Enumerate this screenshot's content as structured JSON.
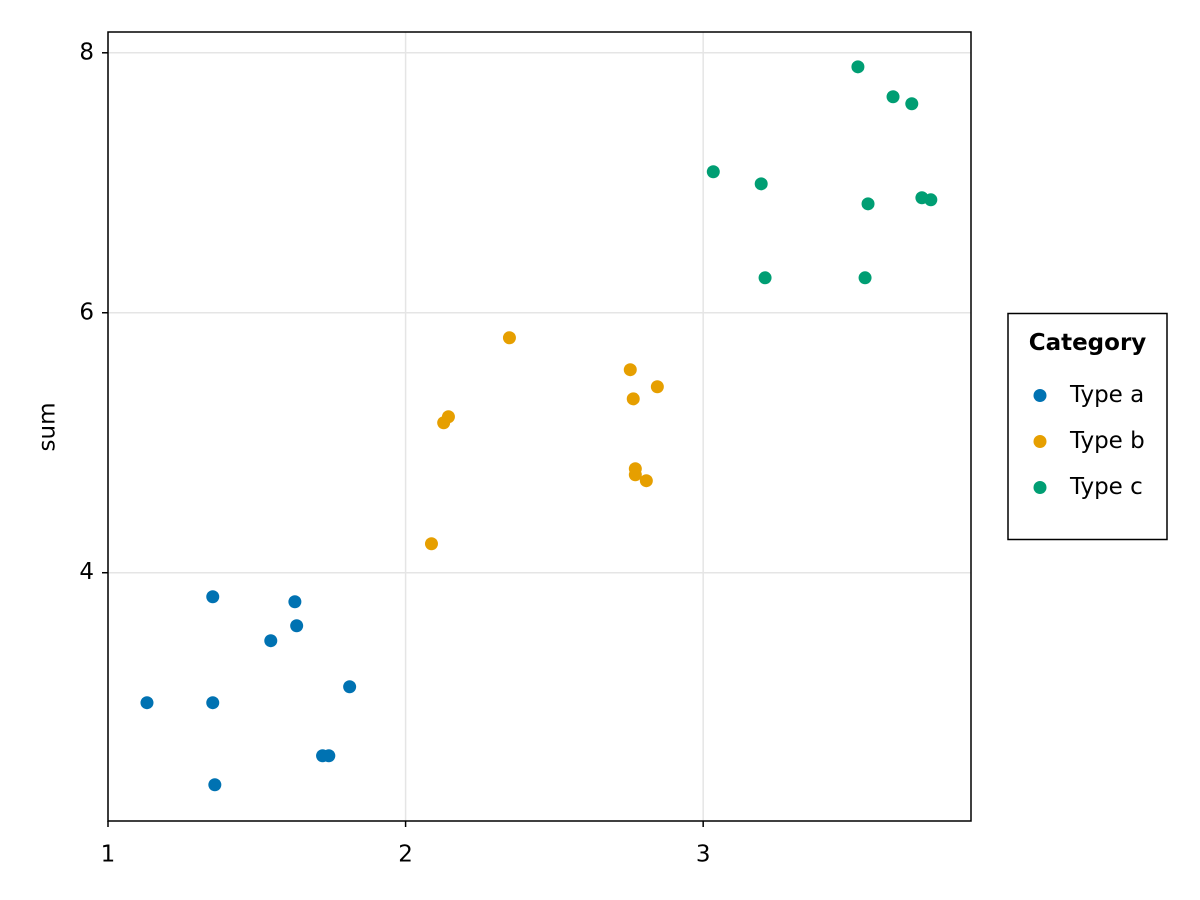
{
  "chart_data": {
    "type": "scatter",
    "y_label": "sum",
    "xlim": [
      1.0,
      3.9
    ],
    "ylim": [
      2.09,
      8.16
    ],
    "xticks": [
      1,
      2,
      3
    ],
    "yticks": [
      4,
      6,
      8
    ],
    "grid": true,
    "legend_title": "Category",
    "legend_position": "right",
    "series": [
      {
        "name": "Type a",
        "color": "#0072b2",
        "x": [
          1.131,
          1.352,
          1.352,
          1.359,
          1.547,
          1.628,
          1.634,
          1.721,
          1.742,
          1.812
        ],
        "values": [
          3.0,
          3.815,
          3.0,
          2.369,
          3.477,
          3.777,
          3.592,
          2.592,
          2.592,
          3.123
        ]
      },
      {
        "name": "Type b",
        "color": "#e69f00",
        "x": [
          2.087,
          2.128,
          2.144,
          2.349,
          2.755,
          2.765,
          2.772,
          2.772,
          2.809,
          2.846
        ],
        "values": [
          4.223,
          5.154,
          5.2,
          5.808,
          5.562,
          5.338,
          4.8,
          4.754,
          4.708,
          5.431
        ]
      },
      {
        "name": "Type c",
        "color": "#009e73",
        "x": [
          3.034,
          3.195,
          3.208,
          3.52,
          3.544,
          3.554,
          3.638,
          3.701,
          3.735,
          3.765
        ],
        "values": [
          7.085,
          6.992,
          6.269,
          7.892,
          6.269,
          6.838,
          7.662,
          7.608,
          6.885,
          6.869
        ]
      }
    ]
  }
}
